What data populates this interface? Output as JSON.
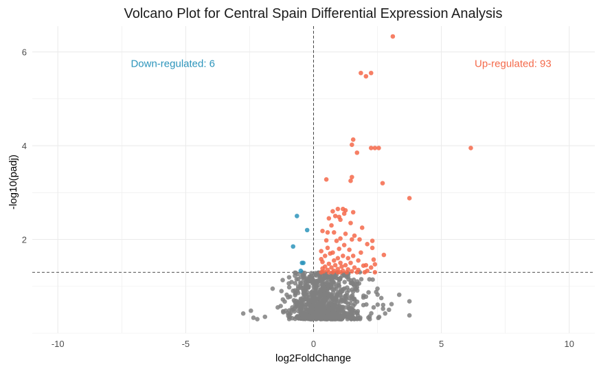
{
  "chart_data": {
    "type": "scatter",
    "title": "Volcano Plot for Central Spain Differential Expression Analysis",
    "xlabel": "log2FoldChange",
    "ylabel": "-log10(padj)",
    "xlim": [
      -11,
      11
    ],
    "ylim": [
      0,
      6.55
    ],
    "x_ticks": [
      -10,
      -5,
      0,
      5,
      10
    ],
    "x_tick_labels": [
      "-10",
      "-5",
      "0",
      "5",
      "10"
    ],
    "y_ticks": [
      2,
      4,
      6
    ],
    "y_tick_labels": [
      "2",
      "4",
      "6"
    ],
    "grid": true,
    "legend": "none",
    "thresholds": {
      "x": 0,
      "y": 1.3
    },
    "colors": {
      "up": "#f4694a",
      "down": "#2b94bb",
      "ns": "#808080",
      "grid": "#ebebeb",
      "threshold": "#333333"
    },
    "annotations": [
      {
        "text": "Down-regulated: 6",
        "x": -5.5,
        "y": 5.75,
        "group": "down"
      },
      {
        "text": "Up-regulated: 93",
        "x": 7.8,
        "y": 5.75,
        "group": "up"
      }
    ],
    "series": [
      {
        "group": "up",
        "points": [
          [
            3.1,
            6.33
          ],
          [
            1.85,
            5.55
          ],
          [
            2.25,
            5.55
          ],
          [
            2.05,
            5.48
          ],
          [
            1.55,
            4.13
          ],
          [
            1.5,
            4.02
          ],
          [
            2.25,
            3.95
          ],
          [
            2.4,
            3.95
          ],
          [
            2.55,
            3.95
          ],
          [
            6.15,
            3.95
          ],
          [
            1.7,
            3.85
          ],
          [
            1.5,
            3.33
          ],
          [
            1.45,
            3.25
          ],
          [
            0.5,
            3.28
          ],
          [
            2.7,
            3.2
          ],
          [
            3.75,
            2.88
          ],
          [
            0.95,
            2.65
          ],
          [
            1.15,
            2.65
          ],
          [
            1.25,
            2.62
          ],
          [
            0.75,
            2.6
          ],
          [
            1.55,
            2.58
          ],
          [
            1.2,
            2.55
          ],
          [
            0.85,
            2.5
          ],
          [
            1.0,
            2.48
          ],
          [
            0.6,
            2.45
          ],
          [
            1.05,
            2.42
          ],
          [
            1.45,
            2.35
          ],
          [
            0.7,
            2.3
          ],
          [
            1.9,
            2.25
          ],
          [
            0.35,
            2.18
          ],
          [
            0.55,
            2.15
          ],
          [
            0.8,
            2.15
          ],
          [
            1.25,
            2.12
          ],
          [
            1.6,
            2.08
          ],
          [
            1.05,
            2.02
          ],
          [
            1.5,
            2.0
          ],
          [
            1.8,
            2.0
          ],
          [
            0.5,
            1.98
          ],
          [
            0.9,
            1.97
          ],
          [
            2.3,
            1.97
          ],
          [
            2.1,
            1.9
          ],
          [
            1.2,
            1.88
          ],
          [
            0.55,
            1.82
          ],
          [
            1.0,
            1.8
          ],
          [
            1.4,
            1.78
          ],
          [
            2.3,
            1.82
          ],
          [
            0.3,
            1.75
          ],
          [
            0.75,
            1.72
          ],
          [
            1.85,
            1.72
          ],
          [
            0.65,
            1.7
          ],
          [
            1.55,
            1.65
          ],
          [
            0.45,
            1.65
          ],
          [
            1.15,
            1.65
          ],
          [
            2.75,
            1.67
          ],
          [
            0.95,
            1.6
          ],
          [
            1.35,
            1.6
          ],
          [
            0.3,
            1.58
          ],
          [
            0.8,
            1.55
          ],
          [
            1.75,
            1.55
          ],
          [
            2.35,
            1.57
          ],
          [
            0.35,
            1.52
          ],
          [
            1.05,
            1.5
          ],
          [
            1.45,
            1.5
          ],
          [
            0.6,
            1.48
          ],
          [
            2.4,
            1.47
          ],
          [
            0.85,
            1.45
          ],
          [
            1.25,
            1.45
          ],
          [
            2.05,
            1.45
          ],
          [
            1.95,
            1.44
          ],
          [
            0.45,
            1.42
          ],
          [
            0.7,
            1.4
          ],
          [
            1.1,
            1.42
          ],
          [
            1.6,
            1.4
          ],
          [
            0.35,
            1.38
          ],
          [
            2.25,
            1.4
          ],
          [
            0.95,
            1.37
          ],
          [
            1.35,
            1.36
          ],
          [
            0.55,
            1.35
          ],
          [
            1.75,
            1.35
          ],
          [
            0.8,
            1.33
          ],
          [
            1.15,
            1.33
          ],
          [
            2.1,
            1.33
          ],
          [
            0.4,
            1.32
          ],
          [
            1.5,
            1.32
          ],
          [
            2.4,
            1.3
          ],
          [
            0.6,
            1.3
          ],
          [
            0.95,
            1.3
          ],
          [
            1.3,
            1.3
          ],
          [
            1.7,
            1.3
          ],
          [
            2.0,
            1.3
          ],
          [
            0.3,
            1.3
          ],
          [
            1.05,
            1.3
          ],
          [
            0.75,
            1.3
          ]
        ]
      },
      {
        "group": "down",
        "points": [
          [
            -0.65,
            2.5
          ],
          [
            -0.25,
            2.2
          ],
          [
            -0.8,
            1.85
          ],
          [
            -0.45,
            1.5
          ],
          [
            -0.4,
            1.5
          ],
          [
            -0.5,
            1.33
          ]
        ]
      },
      {
        "group": "ns",
        "count": 900,
        "seed": 7,
        "points": [
          [
            -2.75,
            0.42
          ],
          [
            -2.45,
            0.48
          ],
          [
            -2.35,
            0.33
          ],
          [
            -2.2,
            0.3
          ],
          [
            -1.6,
            0.95
          ],
          [
            -1.2,
            0.72
          ],
          [
            -1.05,
            0.82
          ],
          [
            -1.9,
            0.35
          ],
          [
            -1.4,
            0.55
          ],
          [
            -0.6,
            1.0
          ],
          [
            -0.95,
            0.98
          ],
          [
            -0.3,
            1.1
          ],
          [
            -0.2,
            1.15
          ],
          [
            3.75,
            0.68
          ],
          [
            3.75,
            0.38
          ],
          [
            3.35,
            0.82
          ],
          [
            3.05,
            0.62
          ],
          [
            2.95,
            0.5
          ],
          [
            2.8,
            0.42
          ],
          [
            2.5,
            0.95
          ],
          [
            2.65,
            0.75
          ],
          [
            2.35,
            0.55
          ],
          [
            2.45,
            0.88
          ],
          [
            2.05,
            0.78
          ],
          [
            1.95,
            0.6
          ],
          [
            1.7,
            0.98
          ],
          [
            1.5,
            0.72
          ],
          [
            1.3,
            1.2
          ],
          [
            0.9,
            1.25
          ],
          [
            0.6,
            1.2
          ]
        ]
      }
    ]
  }
}
